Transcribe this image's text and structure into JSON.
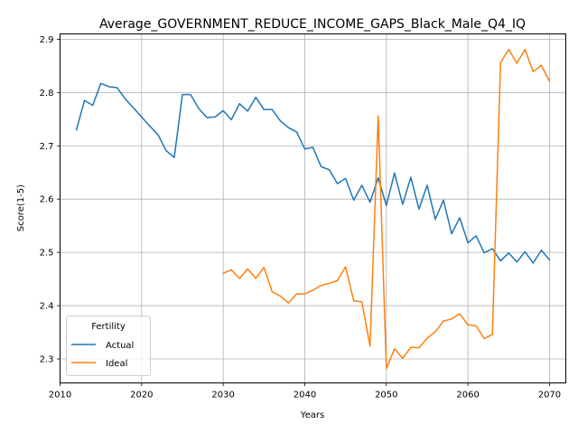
{
  "chart_data": {
    "type": "line",
    "title": "Average_GOVERNMENT_REDUCE_INCOME_GAPS_Black_Male_Q4_IQ",
    "xlabel": "Years",
    "ylabel": "Score(1-5)",
    "xlim": [
      2010,
      2072
    ],
    "ylim": [
      2.255,
      2.91
    ],
    "xticks": [
      2010,
      2020,
      2030,
      2040,
      2050,
      2060,
      2070
    ],
    "yticks": [
      2.3,
      2.4,
      2.5,
      2.6,
      2.7,
      2.8,
      2.9
    ],
    "ytick_labels": [
      "2.3",
      "2.4",
      "2.5",
      "2.6",
      "2.7",
      "2.8",
      "2.9"
    ],
    "grid": true,
    "legend": {
      "title": "Fertility",
      "position": "lower-left"
    },
    "series": [
      {
        "name": "Actual",
        "color": "#1f77b4",
        "x": [
          2012,
          2013,
          2014,
          2015,
          2016,
          2017,
          2018,
          2019,
          2020,
          2021,
          2022,
          2023,
          2024,
          2025,
          2026,
          2027,
          2028,
          2029,
          2030,
          2031,
          2032,
          2033,
          2034,
          2035,
          2036,
          2037,
          2038,
          2039,
          2040,
          2041,
          2042,
          2043,
          2044,
          2045,
          2046,
          2047,
          2048,
          2049,
          2050,
          2051,
          2052,
          2053,
          2054,
          2055,
          2056,
          2057,
          2058,
          2059,
          2060,
          2061,
          2062,
          2063,
          2064,
          2065,
          2066,
          2067,
          2068,
          2069,
          2070
        ],
        "values": [
          2.73,
          2.785,
          2.776,
          2.817,
          2.811,
          2.809,
          2.788,
          2.771,
          2.754,
          2.737,
          2.721,
          2.691,
          2.678,
          2.796,
          2.796,
          2.77,
          2.753,
          2.754,
          2.766,
          2.749,
          2.779,
          2.765,
          2.791,
          2.768,
          2.768,
          2.747,
          2.734,
          2.726,
          2.694,
          2.697,
          2.661,
          2.655,
          2.629,
          2.639,
          2.598,
          2.626,
          2.594,
          2.64,
          2.588,
          2.649,
          2.59,
          2.641,
          2.581,
          2.626,
          2.562,
          2.598,
          2.535,
          2.565,
          2.518,
          2.531,
          2.499,
          2.507,
          2.484,
          2.499,
          2.482,
          2.501,
          2.48,
          2.504,
          2.486
        ]
      },
      {
        "name": "Ideal",
        "color": "#ff7f0e",
        "x": [
          2030,
          2031,
          2032,
          2033,
          2034,
          2035,
          2036,
          2037,
          2038,
          2039,
          2040,
          2041,
          2042,
          2043,
          2044,
          2045,
          2046,
          2047,
          2048,
          2049,
          2050,
          2051,
          2052,
          2053,
          2054,
          2055,
          2056,
          2057,
          2058,
          2059,
          2060,
          2061,
          2062,
          2063,
          2064,
          2065,
          2066,
          2067,
          2068,
          2069,
          2070
        ],
        "values": [
          2.461,
          2.467,
          2.451,
          2.469,
          2.451,
          2.472,
          2.426,
          2.418,
          2.405,
          2.422,
          2.422,
          2.429,
          2.438,
          2.442,
          2.447,
          2.473,
          2.409,
          2.407,
          2.324,
          2.756,
          2.282,
          2.319,
          2.301,
          2.322,
          2.321,
          2.339,
          2.351,
          2.371,
          2.375,
          2.385,
          2.364,
          2.362,
          2.338,
          2.346,
          2.856,
          2.881,
          2.855,
          2.881,
          2.839,
          2.851,
          2.821
        ]
      }
    ]
  }
}
